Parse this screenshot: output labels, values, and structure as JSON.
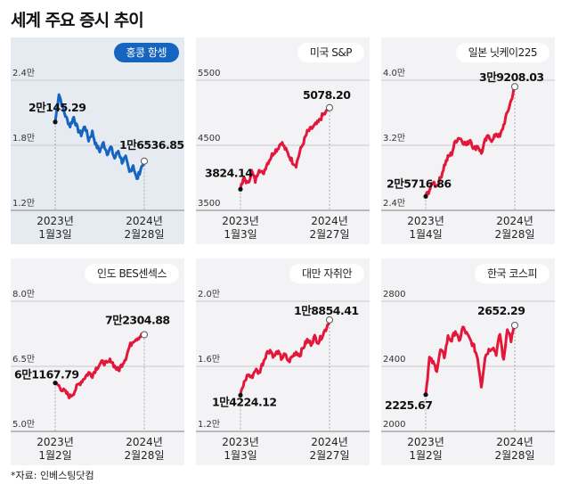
{
  "title": "세계 주요 증시 추이",
  "footer": "*자료: 인베스팅닷컴",
  "colors": {
    "down": "#1565c0",
    "up": "#e3173a",
    "highlight_bg": "#e6ebf2",
    "panel_bg": "#f3f3f5"
  },
  "chart_data": [
    {
      "type": "line",
      "title": "홍콩 항셍",
      "highlight": true,
      "color": "#1565c0",
      "ylim": [
        12000,
        24000
      ],
      "yticks": [
        24000,
        18000,
        12000
      ],
      "ytick_labels": [
        "2.4만",
        "1.8만",
        "1.2만"
      ],
      "start": {
        "value": 20145.29,
        "label": "2만145.29",
        "year": "2023년",
        "date": "1월3일"
      },
      "end": {
        "value": 16536.85,
        "label": "1만6536.85",
        "year": "2024년",
        "date": "2월28일"
      },
      "values": [
        20145,
        22800,
        21500,
        20500,
        19800,
        20600,
        19500,
        19000,
        19800,
        18500,
        19200,
        18000,
        17500,
        18200,
        17300,
        17800,
        16800,
        17500,
        16500,
        16800,
        15500,
        16200,
        14800,
        15800,
        16537
      ]
    },
    {
      "type": "line",
      "title": "미국 S&P",
      "color": "#e3173a",
      "ylim": [
        3500,
        5500
      ],
      "yticks": [
        5500,
        4500,
        3500
      ],
      "ytick_labels": [
        "5500",
        "4500",
        "3500"
      ],
      "start": {
        "value": 3824.14,
        "label": "3824.14",
        "year": "2023년",
        "date": "1월3일"
      },
      "end": {
        "value": 5078.2,
        "label": "5078.20",
        "year": "2024년",
        "date": "2월27일"
      },
      "values": [
        3824,
        4000,
        3900,
        4100,
        3950,
        4150,
        4050,
        4200,
        4300,
        4400,
        4450,
        4550,
        4450,
        4350,
        4250,
        4200,
        4400,
        4550,
        4700,
        4750,
        4800,
        4850,
        4950,
        5000,
        5078
      ]
    },
    {
      "type": "line",
      "title": "일본 닛케이225",
      "color": "#e3173a",
      "ylim": [
        24000,
        40000
      ],
      "yticks": [
        40000,
        32000,
        24000
      ],
      "ytick_labels": [
        "4.0만",
        "3.2만",
        "2.4만"
      ],
      "start": {
        "value": 25716.86,
        "label": "2만5716.86",
        "year": "2023년",
        "date": "1월4일"
      },
      "end": {
        "value": 39208.03,
        "label": "3만9208.03",
        "year": "2024년",
        "date": "2월28일"
      },
      "values": [
        25717,
        26500,
        27500,
        27000,
        28000,
        29500,
        30500,
        31000,
        32500,
        33000,
        32500,
        32000,
        32800,
        31500,
        32000,
        31000,
        32500,
        33200,
        32500,
        33500,
        33000,
        34500,
        36000,
        37500,
        39208
      ]
    },
    {
      "type": "line",
      "title": "인도 BES센섹스",
      "color": "#e3173a",
      "ylim": [
        50000,
        80000
      ],
      "yticks": [
        80000,
        65000,
        50000
      ],
      "ytick_labels": [
        "8.0만",
        "6.5만",
        "5.0만"
      ],
      "start": {
        "value": 61167.79,
        "label": "6만1167.79",
        "year": "2023년",
        "date": "1월2일"
      },
      "end": {
        "value": 72304.88,
        "label": "7만2304.88",
        "year": "2024년",
        "date": "2월28일"
      },
      "values": [
        61168,
        60500,
        59500,
        58800,
        58000,
        59000,
        60500,
        61500,
        62500,
        63500,
        63000,
        64500,
        65500,
        66000,
        65500,
        66500,
        65000,
        64000,
        65500,
        67000,
        69500,
        71000,
        71500,
        72000,
        72305
      ]
    },
    {
      "type": "line",
      "title": "대만 자취안",
      "color": "#e3173a",
      "ylim": [
        12000,
        20000
      ],
      "yticks": [
        20000,
        16000,
        12000
      ],
      "ytick_labels": [
        "2.0만",
        "1.6만",
        "1.2만"
      ],
      "start": {
        "value": 14224.12,
        "label": "1만4224.12",
        "year": "2023년",
        "date": "1월3일"
      },
      "end": {
        "value": 18854.41,
        "label": "1만8854.41",
        "year": "2024년",
        "date": "2월27일"
      },
      "values": [
        14224,
        15000,
        15500,
        15300,
        15800,
        15600,
        16200,
        16800,
        17000,
        16600,
        16900,
        16500,
        16700,
        16300,
        16600,
        16900,
        16700,
        17200,
        17600,
        17400,
        17800,
        17500,
        17900,
        18300,
        18854
      ]
    },
    {
      "type": "line",
      "title": "한국 코스피",
      "color": "#e3173a",
      "ylim": [
        2000,
        2800
      ],
      "yticks": [
        2800,
        2400,
        2000
      ],
      "ytick_labels": [
        "2800",
        "2400",
        "2000"
      ],
      "start": {
        "value": 2225.67,
        "label": "2225.67",
        "year": "2023년",
        "date": "1월2일"
      },
      "end": {
        "value": 2652.29,
        "label": "2652.29",
        "year": "2024년",
        "date": "2월28일"
      },
      "values": [
        2226,
        2450,
        2420,
        2380,
        2500,
        2460,
        2580,
        2560,
        2620,
        2550,
        2640,
        2600,
        2560,
        2520,
        2450,
        2280,
        2460,
        2500,
        2520,
        2480,
        2600,
        2430,
        2640,
        2560,
        2652
      ]
    }
  ]
}
